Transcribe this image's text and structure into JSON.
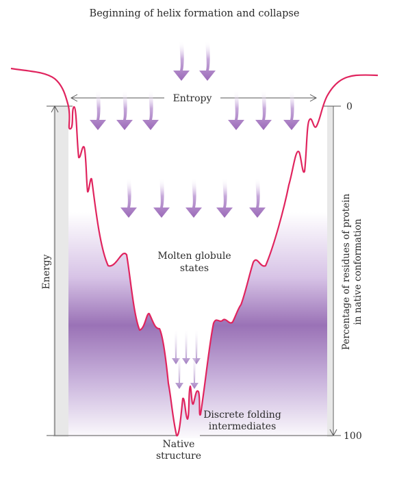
{
  "title": "Beginning of helix formation and collapse",
  "labels": {
    "entropy": "Entropy",
    "energy": "Energy",
    "molten_line1": "Molten globule",
    "molten_line2": "states",
    "discrete_line1": "Discrete folding",
    "discrete_line2": "intermediates",
    "native_line1": "Native",
    "native_line2": "structure",
    "right_axis_line1": "Percentage of residues of protein",
    "right_axis_line2": "in native conformation",
    "tick_top": "0",
    "tick_bottom": "100"
  },
  "colors": {
    "curve": "#e0245e",
    "arrow": "#9b6ab8",
    "fill_gray": "#e8e8e8",
    "purple_dark": "#9a72b6",
    "axis": "#555555"
  }
}
